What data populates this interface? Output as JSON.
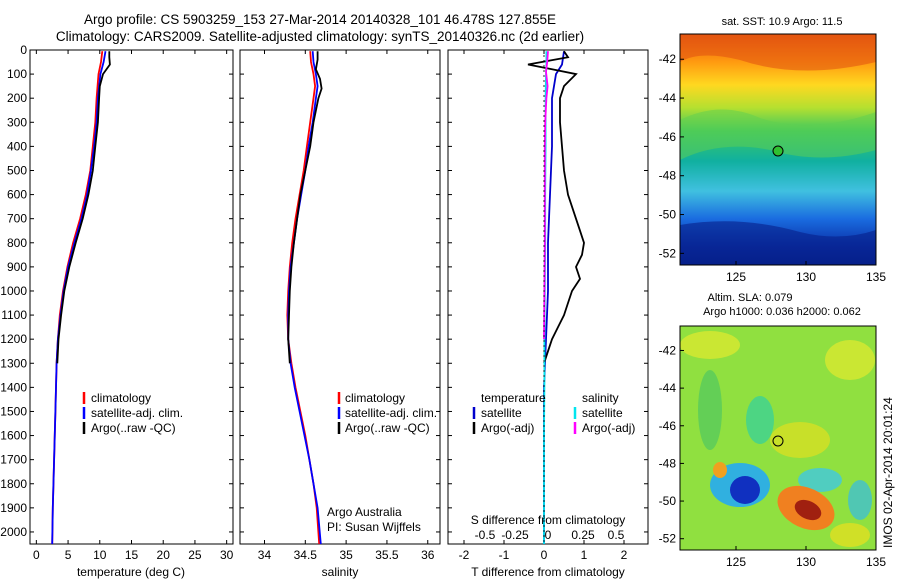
{
  "header": {
    "title_line1": "Argo profile: CS 5903259_153 27-Mar-2014 20140328_101 46.478S 127.855E",
    "title_line2": "Climatology: CARS2009. Satellite-adjusted climatology: synTS_20140326.nc (2d earlier)"
  },
  "colors": {
    "climatology": "#ff0000",
    "satellite": "#0000ff",
    "argo": "#000000",
    "t_sat": "#0000cc",
    "s_sat": "#00e5ee",
    "s_argo": "#ff00ff"
  },
  "chart_data": [
    {
      "id": "temperature",
      "type": "line",
      "xlabel": "temperature (deg C)",
      "ylabel": "",
      "xlim": [
        -1,
        31
      ],
      "ylim": [
        0,
        2050
      ],
      "x_ticks": [
        0,
        5,
        10,
        15,
        20,
        25,
        30
      ],
      "y_ticks": [
        0,
        100,
        200,
        300,
        400,
        500,
        600,
        700,
        800,
        900,
        1000,
        1100,
        1200,
        1300,
        1400,
        1500,
        1600,
        1700,
        1800,
        1900,
        2000
      ],
      "legend": [
        "climatology",
        "satellite-adj. clim.",
        "Argo(..raw -QC)"
      ],
      "series": [
        {
          "name": "climatology",
          "depth": [
            5,
            50,
            100,
            200,
            300,
            400,
            500,
            600,
            700,
            800,
            900,
            1000,
            1100,
            1200,
            1300,
            1500,
            1700,
            1900,
            2050
          ],
          "values": [
            10.4,
            10.2,
            9.8,
            9.5,
            9.3,
            8.9,
            8.5,
            7.8,
            6.9,
            5.8,
            4.9,
            4.2,
            3.7,
            3.4,
            3.2,
            3.0,
            2.8,
            2.6,
            2.5
          ]
        },
        {
          "name": "satellite-adj. clim.",
          "depth": [
            5,
            50,
            100,
            200,
            300,
            400,
            500,
            600,
            700,
            800,
            900,
            1000,
            1100,
            1200,
            1300,
            1500,
            1700,
            1900,
            2050
          ],
          "values": [
            10.9,
            10.6,
            10.1,
            9.7,
            9.5,
            9.1,
            8.6,
            8.0,
            7.1,
            6.0,
            5.0,
            4.3,
            3.8,
            3.4,
            3.2,
            3.0,
            2.8,
            2.6,
            2.5
          ]
        },
        {
          "name": "Argo(..raw -QC)",
          "depth": [
            5,
            30,
            60,
            100,
            150,
            200,
            300,
            400,
            500,
            600,
            700,
            800,
            900,
            1000,
            1100,
            1200,
            1300
          ],
          "values": [
            11.5,
            11.5,
            11.6,
            10.5,
            10.0,
            9.9,
            9.7,
            9.3,
            8.9,
            8.2,
            7.3,
            6.2,
            5.2,
            4.4,
            3.9,
            3.5,
            3.3
          ]
        }
      ]
    },
    {
      "id": "salinity",
      "type": "line",
      "xlabel": "salinity",
      "ylabel": "",
      "xlim": [
        33.7,
        36.15
      ],
      "ylim": [
        0,
        2050
      ],
      "x_ticks": [
        34,
        34.5,
        35,
        35.5,
        36
      ],
      "legend": [
        "climatology",
        "satellite-adj. clim.",
        "Argo(..raw -QC)"
      ],
      "annotation": [
        "Argo Australia",
        "PI: Susan Wijffels"
      ],
      "series": [
        {
          "name": "climatology",
          "depth": [
            5,
            50,
            100,
            150,
            200,
            300,
            400,
            500,
            600,
            700,
            800,
            900,
            1000,
            1100,
            1200,
            1300,
            1400,
            1500,
            1600,
            1700,
            1800,
            1900,
            2050
          ],
          "values": [
            34.56,
            34.57,
            34.6,
            34.62,
            34.6,
            34.56,
            34.52,
            34.48,
            34.43,
            34.38,
            34.34,
            34.31,
            34.29,
            34.28,
            34.29,
            34.33,
            34.38,
            34.44,
            34.5,
            34.55,
            34.6,
            34.64,
            34.67
          ]
        },
        {
          "name": "satellite-adj. clim.",
          "depth": [
            5,
            50,
            100,
            150,
            200,
            300,
            400,
            500,
            600,
            700,
            800,
            900,
            1000,
            1100,
            1200,
            1300,
            1400,
            1500,
            1600,
            1700,
            1800,
            1900,
            2050
          ],
          "values": [
            34.59,
            34.6,
            34.63,
            34.65,
            34.63,
            34.59,
            34.54,
            34.5,
            34.45,
            34.4,
            34.36,
            34.32,
            34.3,
            34.29,
            34.29,
            34.32,
            34.37,
            34.43,
            34.49,
            34.55,
            34.6,
            34.65,
            34.69
          ]
        },
        {
          "name": "Argo(..raw -QC)",
          "depth": [
            5,
            40,
            80,
            120,
            160,
            200,
            300,
            400,
            500,
            600,
            700,
            800,
            900,
            1000,
            1100,
            1200,
            1300
          ],
          "values": [
            34.65,
            34.65,
            34.63,
            34.68,
            34.7,
            34.66,
            34.6,
            34.56,
            34.5,
            34.44,
            34.4,
            34.36,
            34.33,
            34.31,
            34.3,
            34.29,
            34.31
          ]
        }
      ]
    },
    {
      "id": "difference",
      "type": "line",
      "xlabel": "T difference from climatology",
      "xlabel_top": "S difference from climatology",
      "xlim": [
        -2.4,
        2.6
      ],
      "ylim": [
        0,
        2050
      ],
      "x_ticks": [
        -2,
        -1,
        0,
        1,
        2
      ],
      "x_ticks_labels_top": [
        "-0.5",
        "-0.25",
        "0",
        "0.25",
        "0.5"
      ],
      "legend_temperature_title": "temperature",
      "legend_salinity_title": "salinity",
      "legend_temperature": [
        "satellite",
        "Argo(-adj)"
      ],
      "legend_salinity": [
        "satellite",
        "Argo(-adj)"
      ],
      "series": [
        {
          "name": "temperature satellite",
          "depth": [
            5,
            60,
            100,
            200,
            400,
            600,
            800,
            1000,
            1200,
            1400,
            1600,
            1800,
            2050
          ],
          "values": [
            0.5,
            0.45,
            0.3,
            0.2,
            0.2,
            0.15,
            0.1,
            0.1,
            0.05,
            0.0,
            0.0,
            0.0,
            0.0
          ]
        },
        {
          "name": "temperature Argo(-adj)",
          "depth": [
            5,
            30,
            60,
            80,
            100,
            150,
            200,
            300,
            400,
            500,
            600,
            700,
            750,
            800,
            850,
            900,
            950,
            1000,
            1050,
            1100,
            1150,
            1200,
            1250,
            1300
          ],
          "values": [
            0.5,
            0.6,
            -0.4,
            0.2,
            0.8,
            0.5,
            0.4,
            0.4,
            0.45,
            0.5,
            0.6,
            0.8,
            0.9,
            1.0,
            0.95,
            0.8,
            0.9,
            0.7,
            0.6,
            0.5,
            0.35,
            0.2,
            0.1,
            0.0
          ]
        },
        {
          "name": "salinity satellite",
          "depth": [
            5,
            60,
            100,
            200,
            400,
            600,
            800,
            1000,
            1200,
            1400,
            1600,
            1800,
            2050
          ],
          "values": [
            0.06,
            0.06,
            0.05,
            0.04,
            0.04,
            0.03,
            0.03,
            0.02,
            0.01,
            0.01,
            0.0,
            0.0,
            0.0
          ]
        },
        {
          "name": "salinity Argo(-adj)",
          "depth": [
            5,
            50,
            90,
            150,
            200,
            300,
            400,
            600,
            800,
            1000,
            1200
          ],
          "values": [
            0.1,
            0.08,
            0.05,
            0.09,
            0.06,
            0.03,
            0.02,
            0.02,
            0.02,
            0.01,
            0.0
          ]
        }
      ]
    },
    {
      "id": "sst_map",
      "type": "heatmap",
      "title": "sat. SST: 10.9  Argo: 11.5",
      "xlim": [
        121,
        135
      ],
      "ylim": [
        -52.6,
        -40.7
      ],
      "x_ticks": [
        125,
        130,
        135
      ],
      "y_ticks": [
        -42,
        -44,
        -46,
        -48,
        -50,
        -52
      ],
      "marker": {
        "lon": 127.855,
        "lat": -46.478
      }
    },
    {
      "id": "sla_map",
      "type": "heatmap",
      "title_line1": "Altim. SLA: 0.079",
      "title_line2": "Argo h1000: 0.036  h2000: 0.062",
      "xlim": [
        121,
        135
      ],
      "ylim": [
        -52.6,
        -40.7
      ],
      "x_ticks": [
        125,
        130,
        135
      ],
      "y_ticks": [
        -42,
        -44,
        -46,
        -48,
        -50,
        -52
      ],
      "marker": {
        "lon": 127.855,
        "lat": -46.478
      }
    }
  ],
  "footer": {
    "stamp": "IMOS 02-Apr-2014 20:01:24"
  }
}
